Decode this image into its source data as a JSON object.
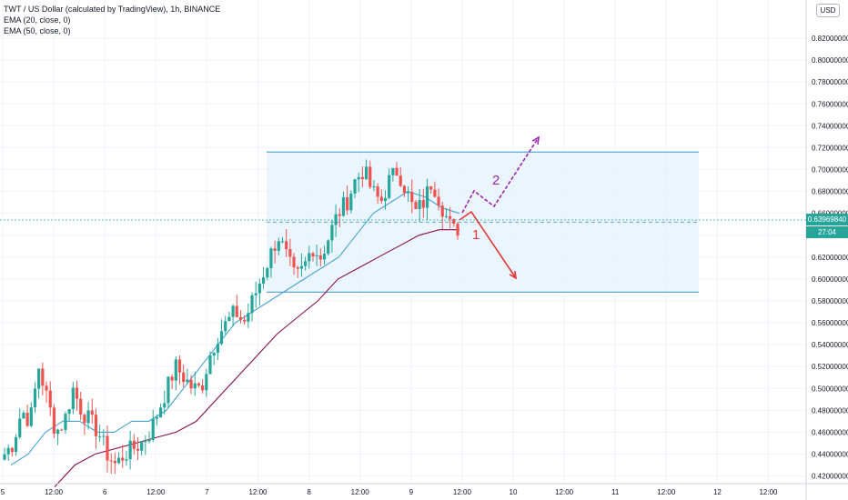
{
  "legend": {
    "title": "TWT / US Dollar (calculated by TradingView), 1h, BINANCE",
    "ema20": "EMA (20, close, 0)",
    "ema50": "EMA (50, close, 0)"
  },
  "currency": "USD",
  "last_price": "0.63969840",
  "countdown": "27:04",
  "annotations": {
    "scenario1": "1",
    "scenario2": "2"
  },
  "colors": {
    "up": "#26a69a",
    "down": "#ef5350",
    "ema20": "#4aa3d6",
    "ema50": "#880e4f",
    "box_fill": "#e3f2fd",
    "box_line": "#5fa8d3",
    "arrow1": "#e53935",
    "arrow2": "#9c27b0"
  },
  "chart_data": {
    "type": "candlestick",
    "title": "TWT / US Dollar (calculated by TradingView), 1h, BINANCE",
    "x_tick_labels": [
      "5",
      "12:00",
      "6",
      "12:00",
      "7",
      "12:00",
      "8",
      "12:00",
      "9",
      "12:00",
      "10",
      "12:00",
      "11",
      "12:00",
      "12",
      "12:00"
    ],
    "y_tick_labels": [
      "0.42000000",
      "0.44000000",
      "0.46000000",
      "0.48000000",
      "0.50000000",
      "0.52000000",
      "0.54000000",
      "0.56000000",
      "0.58000000",
      "0.60000000",
      "0.62000000",
      "0.64000000",
      "0.66000000",
      "0.68000000",
      "0.70000000",
      "0.72000000",
      "0.74000000",
      "0.76000000",
      "0.78000000",
      "0.80000000",
      "0.82000000"
    ],
    "ylim": [
      0.413,
      0.845
    ],
    "close_path": [
      0.44,
      0.45,
      0.48,
      0.47,
      0.52,
      0.49,
      0.46,
      0.47,
      0.5,
      0.48,
      0.47,
      0.46,
      0.44,
      0.43,
      0.44,
      0.445,
      0.45,
      0.46,
      0.48,
      0.5,
      0.52,
      0.51,
      0.5,
      0.5,
      0.53,
      0.55,
      0.56,
      0.57,
      0.56,
      0.58,
      0.6,
      0.62,
      0.64,
      0.62,
      0.6,
      0.61,
      0.63,
      0.62,
      0.64,
      0.66,
      0.67,
      0.69,
      0.7,
      0.68,
      0.67,
      0.69,
      0.7,
      0.68,
      0.66,
      0.67,
      0.69,
      0.67,
      0.65,
      0.64
    ],
    "last_close": 0.6397,
    "range_box": {
      "top": 0.716,
      "bottom": 0.588,
      "mid_dashed": 0.652
    },
    "series": [
      {
        "name": "EMA (20, close, 0)",
        "values": [
          0.43,
          0.44,
          0.46,
          0.47,
          0.47,
          0.46,
          0.46,
          0.47,
          0.47,
          0.48,
          0.5,
          0.52,
          0.54,
          0.56,
          0.57,
          0.58,
          0.59,
          0.6,
          0.61,
          0.62,
          0.64,
          0.66,
          0.67,
          0.68,
          0.675,
          0.665,
          0.66
        ]
      },
      {
        "name": "EMA (50, close, 0)",
        "values": [
          0.41,
          0.43,
          0.44,
          0.445,
          0.45,
          0.455,
          0.46,
          0.47,
          0.49,
          0.51,
          0.53,
          0.55,
          0.565,
          0.58,
          0.6,
          0.61,
          0.62,
          0.63,
          0.64,
          0.645,
          0.645
        ]
      }
    ]
  }
}
